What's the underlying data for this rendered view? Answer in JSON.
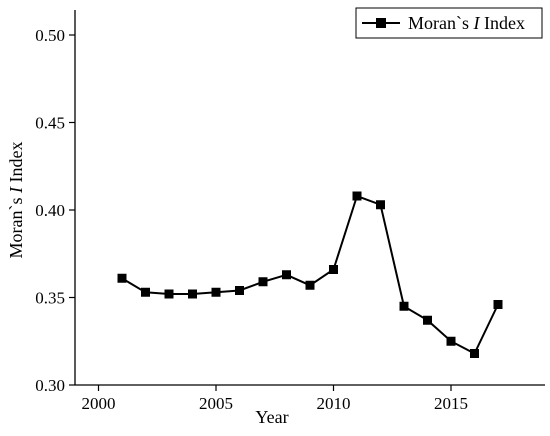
{
  "chart_data": {
    "type": "line",
    "title": "",
    "xlabel": "Year",
    "ylabel_parts": [
      "Moran`s ",
      "I",
      " Index"
    ],
    "xlim": [
      1999,
      2019
    ],
    "ylim": [
      0.3,
      0.5
    ],
    "x_ticks": [
      2000,
      2005,
      2010,
      2015
    ],
    "x_tick_labels": [
      "2000",
      "2005",
      "2010",
      "2015"
    ],
    "y_ticks": [
      0.3,
      0.35,
      0.4,
      0.45,
      0.5
    ],
    "y_tick_labels": [
      "0.30",
      "0.35",
      "0.40",
      "0.45",
      "0.50"
    ],
    "grid": false,
    "legend_position": "top-right",
    "legend_parts": [
      "Moran`s ",
      "I",
      " Index"
    ],
    "series": [
      {
        "color": "#000000",
        "marker": "square",
        "x": [
          2001,
          2002,
          2003,
          2004,
          2005,
          2006,
          2007,
          2008,
          2009,
          2010,
          2011,
          2012,
          2013,
          2014,
          2015,
          2016,
          2017
        ],
        "y": [
          0.361,
          0.353,
          0.352,
          0.352,
          0.353,
          0.354,
          0.359,
          0.363,
          0.357,
          0.366,
          0.408,
          0.403,
          0.345,
          0.337,
          0.325,
          0.318,
          0.346
        ]
      }
    ]
  }
}
